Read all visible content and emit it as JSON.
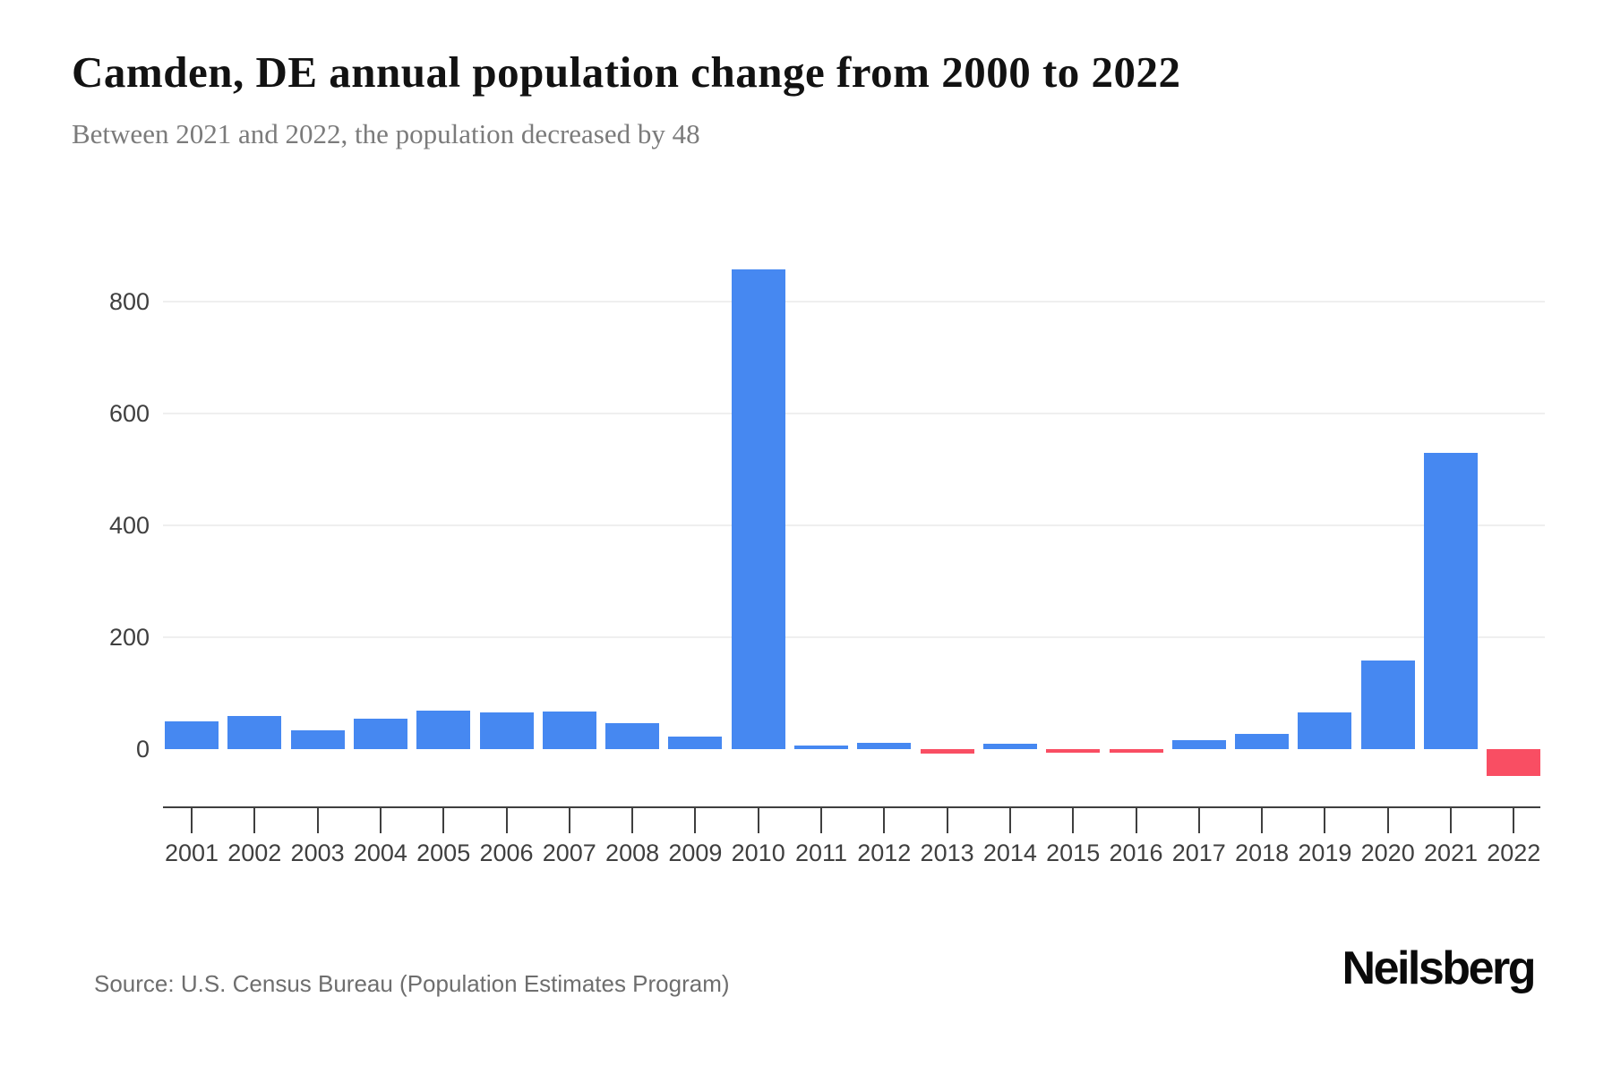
{
  "header": {
    "title": "Camden, DE annual population change from 2000 to 2022",
    "subtitle": "Between 2021 and 2022, the population decreased by 48"
  },
  "footer": {
    "source": "Source: U.S. Census Bureau (Population Estimates Program)",
    "brand": "Neilsberg"
  },
  "colors": {
    "bar_positive": "#4688F1",
    "bar_negative": "#F94E63",
    "gridline": "#efefef",
    "axis": "#3f3f3f",
    "tick_label": "#3f3f3f",
    "subtitle_text": "#7b7b7b",
    "source_text": "#6e6e6e"
  },
  "chart_data": {
    "type": "bar",
    "title": "Camden, DE annual population change from 2000 to 2022",
    "subtitle": "Between 2021 and 2022, the population decreased by 48",
    "xlabel": "",
    "ylabel": "",
    "categories": [
      "2001",
      "2002",
      "2003",
      "2004",
      "2005",
      "2006",
      "2007",
      "2008",
      "2009",
      "2010",
      "2011",
      "2012",
      "2013",
      "2014",
      "2015",
      "2016",
      "2017",
      "2018",
      "2019",
      "2020",
      "2021",
      "2022"
    ],
    "values": [
      50,
      60,
      33,
      55,
      69,
      65,
      67,
      46,
      23,
      858,
      6,
      12,
      -8,
      10,
      -7,
      -6,
      16,
      28,
      66,
      158,
      530,
      -48
    ],
    "yticks": [
      0,
      200,
      400,
      600,
      800
    ],
    "ylim": [
      -60,
      880
    ],
    "grid": "horizontal-only",
    "legend": false,
    "bar_color_rule": "blue for increase, red for decrease"
  }
}
